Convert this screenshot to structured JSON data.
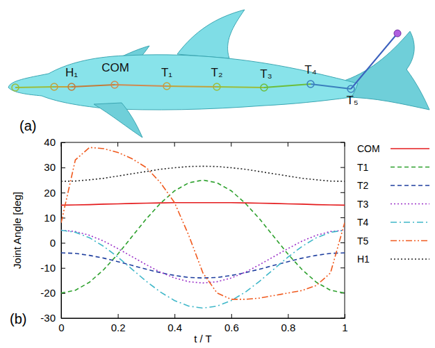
{
  "panels": [
    "(a)",
    "(b)"
  ],
  "diagram": {
    "joints": [
      "H₁",
      "COM",
      "T₁",
      "T₂",
      "T₃",
      "T₄",
      "T₅"
    ]
  },
  "chart_data": {
    "type": "line",
    "x_label": "t / T",
    "y_label": "Joint Angle [deg]",
    "x": [
      0,
      0.05,
      0.1,
      0.15,
      0.2,
      0.25,
      0.3,
      0.35,
      0.4,
      0.45,
      0.5,
      0.55,
      0.6,
      0.65,
      0.7,
      0.75,
      0.8,
      0.85,
      0.9,
      0.95,
      1
    ],
    "xlim": [
      0,
      1
    ],
    "xticks": [
      0,
      0.2,
      0.4,
      0.6,
      0.8,
      1
    ],
    "ylim": [
      -30,
      40
    ],
    "yticks": [
      -30,
      -20,
      -10,
      0,
      10,
      20,
      30,
      40
    ],
    "legend": "outside-right",
    "series": [
      {
        "name": "COM",
        "color": "#e41a1c",
        "line_style": "solid",
        "values": [
          15,
          15.1,
          15.2,
          15.4,
          15.5,
          15.7,
          15.8,
          15.9,
          16,
          16,
          16,
          16,
          16,
          15.9,
          15.8,
          15.7,
          15.5,
          15.4,
          15.2,
          15.1,
          15
        ]
      },
      {
        "name": "T1",
        "color": "#2ca02c",
        "line_style": "dashed",
        "values": [
          -20,
          -18.9,
          -15.7,
          -10.7,
          -4.5,
          2.5,
          9.5,
          15.7,
          20.7,
          23.9,
          25,
          23.9,
          20.7,
          15.7,
          9.5,
          2.5,
          -4.5,
          -10.7,
          -15.7,
          -18.9,
          -20
        ]
      },
      {
        "name": "T2",
        "color": "#1f3f9f",
        "line_style": "dashed",
        "values": [
          -4,
          -4.2,
          -5,
          -6.1,
          -7.5,
          -9,
          -10.5,
          -11.9,
          -13,
          -13.8,
          -14,
          -13.8,
          -13,
          -11.9,
          -10.5,
          -9,
          -7.5,
          -6.1,
          -5,
          -4.2,
          -4
        ]
      },
      {
        "name": "T3",
        "color": "#9b30c8",
        "line_style": "dotted",
        "values": [
          5,
          4.5,
          3,
          0.7,
          -2.3,
          -5.5,
          -8.7,
          -11.7,
          -14,
          -15.5,
          -16,
          -15.5,
          -14,
          -11.7,
          -8.7,
          -5.5,
          -2.3,
          0.7,
          3,
          4.5,
          5
        ]
      },
      {
        "name": "T4",
        "color": "#3fb7c9",
        "line_style": "dashdot",
        "values": [
          5,
          4.2,
          2,
          -1.4,
          -5.7,
          -10.5,
          -15.3,
          -19.6,
          -23,
          -25.2,
          -26,
          -25.2,
          -23,
          -19.6,
          -15.3,
          -10.5,
          -5.7,
          -1.4,
          2,
          4.2,
          5
        ]
      },
      {
        "name": "T5",
        "color": "#f05a1e",
        "line_style": "dashdotdot",
        "values": [
          8,
          33,
          38,
          37.5,
          36,
          33.5,
          30,
          24,
          16,
          3,
          -12,
          -20,
          -22.5,
          -22.5,
          -22,
          -21,
          -20,
          -19,
          -17,
          -12,
          8
        ]
      },
      {
        "name": "H1",
        "color": "#222222",
        "line_style": "dotted",
        "values": [
          24.5,
          24.6,
          25.1,
          25.7,
          26.6,
          27.5,
          28.4,
          29.3,
          29.9,
          30.4,
          30.5,
          30.4,
          29.9,
          29.3,
          28.4,
          27.5,
          26.6,
          25.7,
          25.1,
          24.6,
          24.5
        ]
      }
    ]
  }
}
